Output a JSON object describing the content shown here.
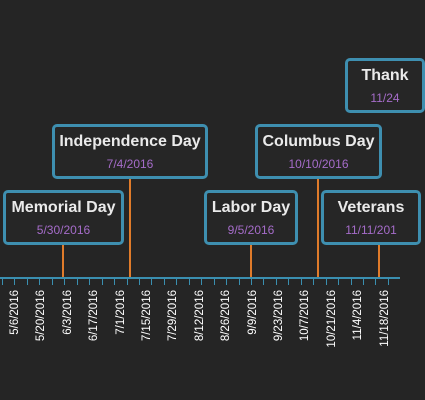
{
  "timeline": {
    "accent_color": "#3e8fb0",
    "connector_color": "#e07b2a",
    "title_color": "#eaeaea",
    "date_color": "#a56cc9",
    "background_color": "#252525",
    "axis_labels": [
      "5/6/2016",
      "5/20/2016",
      "6/3/2016",
      "6/17/2016",
      "7/1/2016",
      "7/15/2016",
      "7/29/2016",
      "8/12/2016",
      "8/26/2016",
      "9/9/2016",
      "9/23/2016",
      "10/7/2016",
      "10/21/2016",
      "11/4/2016",
      "11/18/2016"
    ],
    "events": [
      {
        "title": "Memorial Day",
        "date": "5/30/2016"
      },
      {
        "title": "Independence Day",
        "date": "7/4/2016"
      },
      {
        "title": "Labor Day",
        "date": "9/5/2016"
      },
      {
        "title": "Columbus Day",
        "date": "10/10/2016"
      },
      {
        "title": "Veterans",
        "date": "11/11/201"
      },
      {
        "title": "Thank",
        "date": "11/24"
      }
    ]
  }
}
